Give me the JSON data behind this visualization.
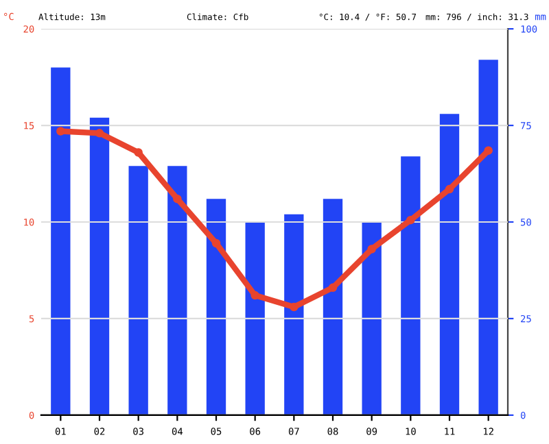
{
  "chart_data": {
    "type": "bar",
    "ylabel": "°C",
    "y2label": "mm",
    "annotations": [
      "Altitude: 13m",
      "Climate: Cfb",
      "°C: 10.4 / °F: 50.7",
      "mm: 796 / inch: 31.3"
    ],
    "categories": [
      "01",
      "02",
      "03",
      "04",
      "05",
      "06",
      "07",
      "08",
      "09",
      "10",
      "11",
      "12"
    ],
    "series": [
      {
        "axis": "y2",
        "color": "#2244f5",
        "values": [
          90,
          77,
          64.5,
          64.5,
          56,
          50,
          52,
          56,
          50,
          67,
          78,
          92
        ]
      },
      {
        "type": "line",
        "axis": "y",
        "color": "#e8442e",
        "marker": "circle",
        "values": [
          14.7,
          14.6,
          13.6,
          11.2,
          8.9,
          6.2,
          5.6,
          6.6,
          8.6,
          10.1,
          11.7,
          13.7
        ]
      }
    ],
    "ylim": [
      0,
      20
    ],
    "yticks": [
      0,
      5,
      10,
      15,
      20
    ],
    "y2lim": [
      0,
      100
    ],
    "y2ticks": [
      0,
      25,
      50,
      75,
      100
    ],
    "grid": "y",
    "legend": false
  }
}
